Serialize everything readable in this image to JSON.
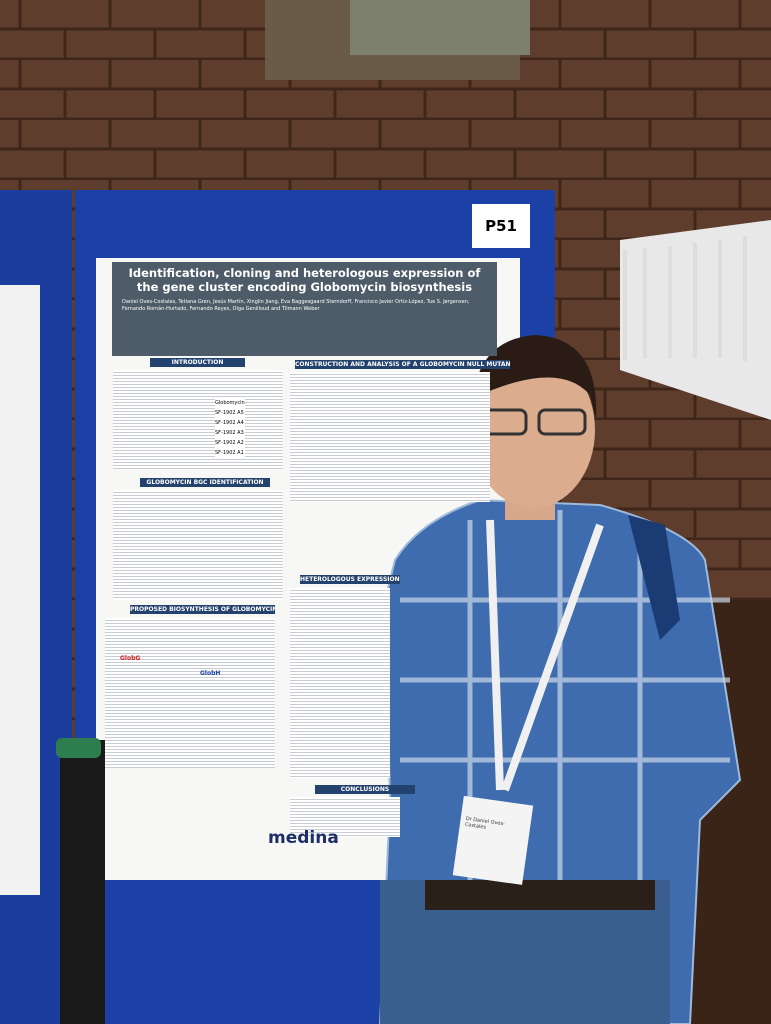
{
  "board_label": "P51",
  "poster": {
    "title": "Identification, cloning and heterologous expression of the gene cluster encoding Globomycin biosynthesis",
    "authors": "Daniel Oves-Costales, Tetiana Gren, Jesús Martín, Xinglin Jiang, Eva Baggesgaard Sterndorff, Francisco Javier Ortiz-López, Tue S. Jørgensen, Fernando Román-Hurtado, Fernando Reyes, Olga Genilloud and Tilmann Weber",
    "sections": [
      "INTRODUCTION",
      "CONSTRUCTION AND ANALYSIS OF A GLOBOMYCIN NULL MUTANT",
      "GLOBOMYCIN BGC IDENTIFICATION",
      "PROPOSED BIOSYNTHESIS OF GLOBOMYCIN",
      "HETEROLOGOUS EXPRESSION OF",
      "CONCLUSIONS"
    ],
    "compounds": [
      "Globomycin",
      "SF-1902 A5",
      "SF-1902 A4",
      "SF-1902 A3",
      "SF-1902 A2",
      "SF-1902 A1"
    ],
    "genes": [
      "GlobG",
      "GlobH"
    ],
    "logo": "medina"
  },
  "badge": {
    "name": "Dr Daniel Oves-Costales"
  }
}
